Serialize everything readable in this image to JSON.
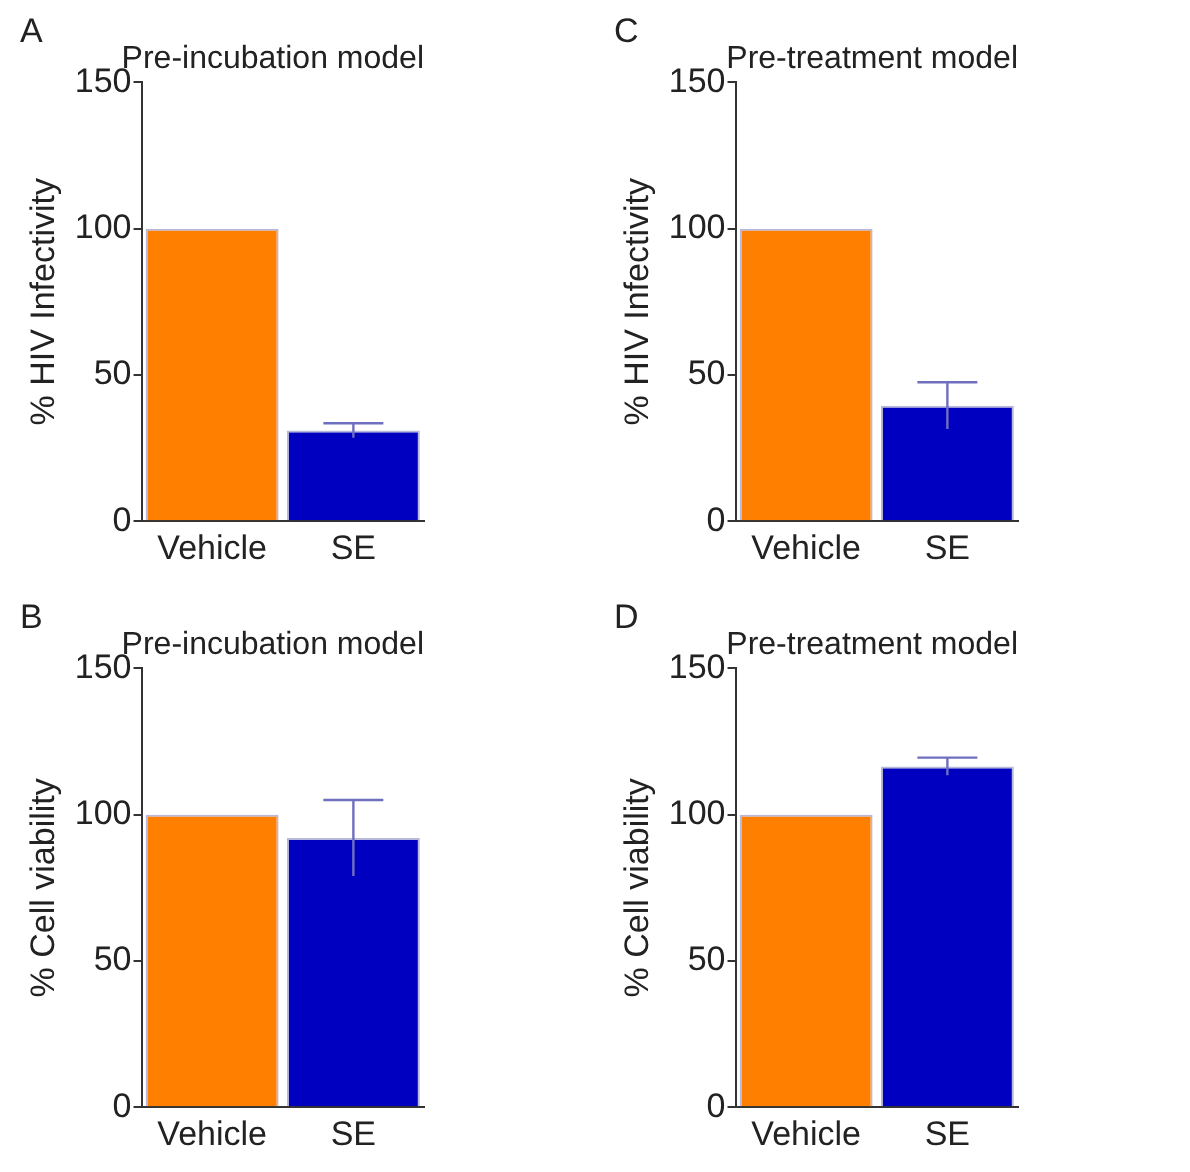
{
  "chart_data": [
    {
      "type": "bar",
      "title": "Pre-incubation model",
      "ylabel": "% HIV Infectivity",
      "annotations": [
        "A"
      ],
      "categories": [
        "Vehicle",
        "SE"
      ],
      "values": [
        100,
        31
      ],
      "colors": [
        "#ff8000",
        "#0000c0"
      ],
      "errors": [
        null,
        2.5
      ],
      "ylim": [
        0,
        150
      ],
      "yticks": [
        0,
        50,
        100,
        150
      ],
      "grid": false,
      "legend": false
    },
    {
      "type": "bar",
      "title": "Pre-treatment model",
      "ylabel": "% HIV Infectivity",
      "annotations": [
        "C"
      ],
      "categories": [
        "Vehicle",
        "SE"
      ],
      "values": [
        100,
        39.5
      ],
      "colors": [
        "#ff8000",
        "#0000c0"
      ],
      "errors": [
        null,
        8
      ],
      "ylim": [
        0,
        150
      ],
      "yticks": [
        0,
        50,
        100,
        150
      ],
      "grid": false,
      "legend": false
    },
    {
      "type": "bar",
      "title": "Pre-incubation model",
      "ylabel": "% Cell viability",
      "annotations": [
        "B"
      ],
      "categories": [
        "Vehicle",
        "SE"
      ],
      "values": [
        100,
        92
      ],
      "colors": [
        "#ff8000",
        "#0000c0"
      ],
      "errors": [
        null,
        13
      ],
      "ylim": [
        0,
        150
      ],
      "yticks": [
        0,
        50,
        100,
        150
      ],
      "grid": false,
      "legend": false
    },
    {
      "type": "bar",
      "title": "Pre-treatment model",
      "ylabel": "% Cell viability",
      "annotations": [
        "D"
      ],
      "categories": [
        "Vehicle",
        "SE"
      ],
      "values": [
        100,
        116.5
      ],
      "colors": [
        "#ff8000",
        "#0000c0"
      ],
      "errors": [
        null,
        3
      ],
      "ylim": [
        0,
        150
      ],
      "yticks": [
        0,
        50,
        100,
        150
      ],
      "grid": false,
      "legend": false
    }
  ]
}
